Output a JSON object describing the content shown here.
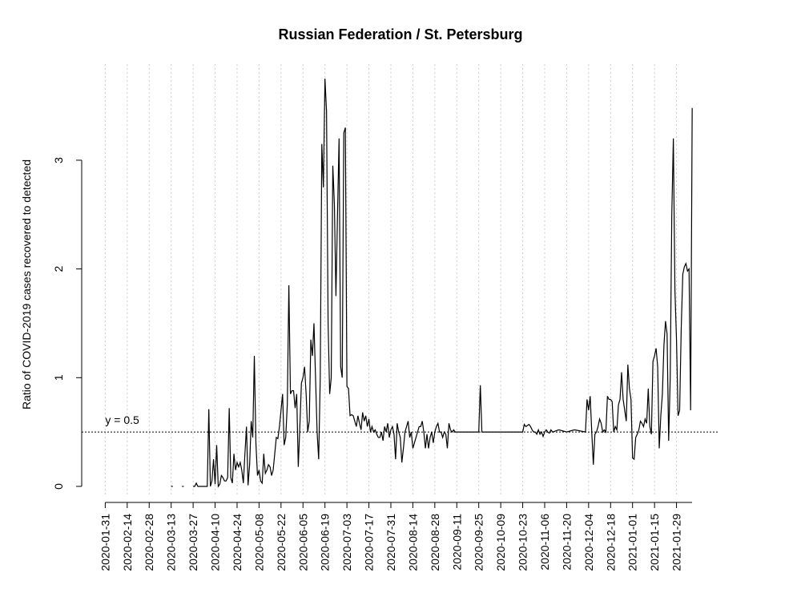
{
  "chart_data": {
    "type": "line",
    "title": "Russian Federation / St. Petersburg",
    "ylabel": "Ratio of COVID-2019 cases recovered to detected",
    "color": "#000000",
    "grid": true,
    "xlim": [
      "2020-01-16",
      "2021-02-12"
    ],
    "ylim": [
      -0.096,
      3.884
    ],
    "yticks": [
      0,
      1,
      2,
      3
    ],
    "xticks": [
      "2020-01-31",
      "2020-02-14",
      "2020-02-28",
      "2020-03-13",
      "2020-03-27",
      "2020-04-10",
      "2020-04-24",
      "2020-05-08",
      "2020-05-22",
      "2020-06-05",
      "2020-06-19",
      "2020-07-03",
      "2020-07-17",
      "2020-07-31",
      "2020-08-14",
      "2020-08-28",
      "2020-09-11",
      "2020-09-25",
      "2020-10-09",
      "2020-10-23",
      "2020-11-06",
      "2020-11-20",
      "2020-12-04",
      "2020-12-18",
      "2021-01-01",
      "2021-01-15",
      "2021-01-29"
    ],
    "hline": {
      "y": 0.5,
      "label": "y = 0.5"
    },
    "x": [
      "2020-03-13",
      "2020-03-14",
      "2020-03-15",
      "2020-03-20",
      "2020-03-21",
      "2020-03-22",
      "2020-03-27",
      "2020-03-28",
      "2020-03-29",
      "2020-03-30",
      "2020-03-31",
      "2020-04-01",
      "2020-04-02",
      "2020-04-03",
      "2020-04-04",
      "2020-04-05",
      "2020-04-06",
      "2020-04-07",
      "2020-04-08",
      "2020-04-09",
      "2020-04-10",
      "2020-04-11",
      "2020-04-12",
      "2020-04-13",
      "2020-04-14",
      "2020-04-15",
      "2020-04-16",
      "2020-04-17",
      "2020-04-18",
      "2020-04-19",
      "2020-04-20",
      "2020-04-21",
      "2020-04-22",
      "2020-04-23",
      "2020-04-24",
      "2020-04-25",
      "2020-04-26",
      "2020-04-27",
      "2020-04-28",
      "2020-04-29",
      "2020-04-30",
      "2020-05-01",
      "2020-05-02",
      "2020-05-03",
      "2020-05-04",
      "2020-05-05",
      "2020-05-06",
      "2020-05-07",
      "2020-05-08",
      "2020-05-09",
      "2020-05-10",
      "2020-05-11",
      "2020-05-12",
      "2020-05-13",
      "2020-05-14",
      "2020-05-15",
      "2020-05-16",
      "2020-05-17",
      "2020-05-18",
      "2020-05-19",
      "2020-05-20",
      "2020-05-21",
      "2020-05-22",
      "2020-05-23",
      "2020-05-24",
      "2020-05-25",
      "2020-05-26",
      "2020-05-27",
      "2020-05-28",
      "2020-05-29",
      "2020-05-30",
      "2020-05-31",
      "2020-06-01",
      "2020-06-02",
      "2020-06-03",
      "2020-06-04",
      "2020-06-05",
      "2020-06-06",
      "2020-06-07",
      "2020-06-08",
      "2020-06-09",
      "2020-06-10",
      "2020-06-11",
      "2020-06-12",
      "2020-06-13",
      "2020-06-14",
      "2020-06-15",
      "2020-06-16",
      "2020-06-17",
      "2020-06-18",
      "2020-06-19",
      "2020-06-20",
      "2020-06-21",
      "2020-06-22",
      "2020-06-23",
      "2020-06-24",
      "2020-06-25",
      "2020-06-26",
      "2020-06-27",
      "2020-06-28",
      "2020-06-29",
      "2020-06-30",
      "2020-07-01",
      "2020-07-02",
      "2020-07-03",
      "2020-07-04",
      "2020-07-05",
      "2020-07-06",
      "2020-07-07",
      "2020-07-08",
      "2020-07-09",
      "2020-07-10",
      "2020-07-11",
      "2020-07-12",
      "2020-07-13",
      "2020-07-14",
      "2020-07-15",
      "2020-07-16",
      "2020-07-17",
      "2020-07-18",
      "2020-07-19",
      "2020-07-20",
      "2020-07-21",
      "2020-07-22",
      "2020-07-23",
      "2020-07-24",
      "2020-07-25",
      "2020-07-26",
      "2020-07-27",
      "2020-07-28",
      "2020-07-29",
      "2020-07-30",
      "2020-07-31",
      "2020-08-01",
      "2020-08-02",
      "2020-08-03",
      "2020-08-04",
      "2020-08-05",
      "2020-08-06",
      "2020-08-07",
      "2020-08-08",
      "2020-08-09",
      "2020-08-10",
      "2020-08-11",
      "2020-08-12",
      "2020-08-13",
      "2020-08-14",
      "2020-08-15",
      "2020-08-16",
      "2020-08-17",
      "2020-08-18",
      "2020-08-19",
      "2020-08-20",
      "2020-08-21",
      "2020-08-22",
      "2020-08-23",
      "2020-08-24",
      "2020-08-25",
      "2020-08-26",
      "2020-08-27",
      "2020-08-28",
      "2020-08-29",
      "2020-08-30",
      "2020-08-31",
      "2020-09-01",
      "2020-09-02",
      "2020-09-03",
      "2020-09-04",
      "2020-09-05",
      "2020-09-06",
      "2020-09-07",
      "2020-09-08",
      "2020-09-09",
      "2020-09-10",
      "2020-09-15",
      "2020-09-20",
      "2020-09-25",
      "2020-09-26",
      "2020-09-27",
      "2020-10-05",
      "2020-10-15",
      "2020-10-23",
      "2020-10-24",
      "2020-10-25",
      "2020-10-26",
      "2020-10-27",
      "2020-10-28",
      "2020-10-29",
      "2020-10-30",
      "2020-10-31",
      "2020-11-01",
      "2020-11-02",
      "2020-11-03",
      "2020-11-04",
      "2020-11-05",
      "2020-11-06",
      "2020-11-07",
      "2020-11-08",
      "2020-11-09",
      "2020-11-10",
      "2020-11-11",
      "2020-11-15",
      "2020-11-20",
      "2020-11-25",
      "2020-12-02",
      "2020-12-03",
      "2020-12-04",
      "2020-12-05",
      "2020-12-06",
      "2020-12-07",
      "2020-12-08",
      "2020-12-09",
      "2020-12-10",
      "2020-12-11",
      "2020-12-12",
      "2020-12-13",
      "2020-12-14",
      "2020-12-15",
      "2020-12-16",
      "2020-12-17",
      "2020-12-18",
      "2020-12-19",
      "2020-12-20",
      "2020-12-21",
      "2020-12-22",
      "2020-12-23",
      "2020-12-24",
      "2020-12-25",
      "2020-12-26",
      "2020-12-27",
      "2020-12-28",
      "2020-12-29",
      "2020-12-30",
      "2020-12-31",
      "2021-01-01",
      "2021-01-02",
      "2021-01-03",
      "2021-01-04",
      "2021-01-05",
      "2021-01-06",
      "2021-01-07",
      "2021-01-08",
      "2021-01-09",
      "2021-01-10",
      "2021-01-11",
      "2021-01-12",
      "2021-01-13",
      "2021-01-14",
      "2021-01-15",
      "2021-01-16",
      "2021-01-17",
      "2021-01-18",
      "2021-01-19",
      "2021-01-20",
      "2021-01-21",
      "2021-01-22",
      "2021-01-23",
      "2021-01-24",
      "2021-01-25",
      "2021-01-26",
      "2021-01-27",
      "2021-01-28",
      "2021-01-29",
      "2021-01-30",
      "2021-01-31",
      "2021-02-01",
      "2021-02-02",
      "2021-02-03",
      "2021-02-04",
      "2021-02-05",
      "2021-02-06",
      "2021-02-07",
      "2021-02-08"
    ],
    "values": [
      0,
      0,
      null,
      0,
      0,
      null,
      0,
      0,
      0.03,
      0,
      0,
      0,
      0,
      0,
      0,
      0,
      0.71,
      0,
      0.05,
      0.25,
      0.02,
      0.38,
      0,
      0.02,
      0.1,
      0.08,
      0.05,
      0.05,
      0.08,
      0.72,
      0.08,
      0.03,
      0.3,
      0.15,
      0.22,
      0.18,
      0.22,
      0.15,
      0.03,
      0.3,
      0.55,
      0.01,
      0.2,
      0.6,
      0.45,
      1.2,
      0.4,
      0.1,
      0.15,
      0.05,
      0.03,
      0.3,
      0.12,
      0.15,
      0.2,
      0.18,
      0.1,
      0.15,
      0.3,
      0.45,
      0.44,
      0.55,
      0.7,
      0.85,
      0.38,
      0.45,
      0.75,
      1.85,
      0.85,
      0.88,
      0.88,
      0.72,
      0.85,
      0.18,
      0.55,
      0.95,
      1.0,
      1.1,
      0.85,
      0.5,
      0.6,
      1.35,
      1.2,
      1.5,
      1.0,
      0.5,
      0.25,
      1.0,
      3.15,
      2.75,
      3.75,
      3.45,
      1.5,
      0.85,
      1.0,
      2.95,
      2.6,
      1.75,
      2.5,
      3.2,
      1.1,
      1.0,
      3.25,
      3.3,
      0.92,
      0.9,
      0.65,
      0.66,
      0.65,
      0.6,
      0.55,
      0.65,
      0.58,
      0.52,
      0.68,
      0.6,
      0.65,
      0.55,
      0.62,
      0.5,
      0.55,
      0.5,
      0.52,
      0.48,
      0.45,
      0.45,
      0.5,
      0.42,
      0.55,
      0.5,
      0.58,
      0.45,
      0.52,
      0.55,
      0.48,
      0.25,
      0.58,
      0.5,
      0.45,
      0.22,
      0.35,
      0.5,
      0.55,
      0.6,
      0.45,
      0.5,
      0.35,
      0.4,
      0.45,
      0.5,
      0.55,
      0.55,
      0.6,
      0.5,
      0.35,
      0.48,
      0.35,
      0.45,
      0.5,
      0.4,
      0.5,
      0.55,
      0.58,
      0.5,
      0.5,
      0.45,
      0.5,
      0.48,
      0.35,
      0.58,
      0.52,
      0.5,
      0.52,
      0.5,
      0.5,
      0.5,
      0.5,
      0.93,
      0.5,
      0.5,
      0.5,
      0.5,
      0.57,
      0.55,
      0.56,
      0.57,
      0.55,
      0.52,
      0.5,
      0.5,
      0.48,
      0.52,
      0.48,
      0.5,
      0.46,
      0.5,
      0.52,
      0.5,
      0.49,
      0.52,
      0.5,
      0.52,
      0.5,
      0.52,
      0.5,
      0.8,
      0.7,
      0.83,
      0.5,
      0.2,
      0.48,
      0.5,
      0.55,
      0.62,
      0.58,
      0.5,
      0.52,
      0.5,
      0.83,
      0.8,
      0.8,
      0.78,
      0.5,
      0.55,
      0.52,
      0.75,
      0.8,
      1.05,
      0.8,
      0.7,
      0.6,
      1.12,
      0.9,
      0.8,
      0.26,
      0.25,
      0.45,
      0.48,
      0.52,
      0.6,
      0.58,
      0.55,
      0.62,
      0.58,
      0.9,
      0.55,
      0.48,
      1.15,
      1.2,
      1.27,
      1.1,
      0.35,
      0.65,
      0.85,
      1.3,
      1.52,
      1.4,
      0.42,
      1.0,
      2.5,
      3.2,
      1.8,
      1.35,
      0.65,
      0.7,
      1.45,
      1.95,
      2.02,
      2.05,
      1.98,
      2.0,
      0.7,
      3.48
    ]
  }
}
